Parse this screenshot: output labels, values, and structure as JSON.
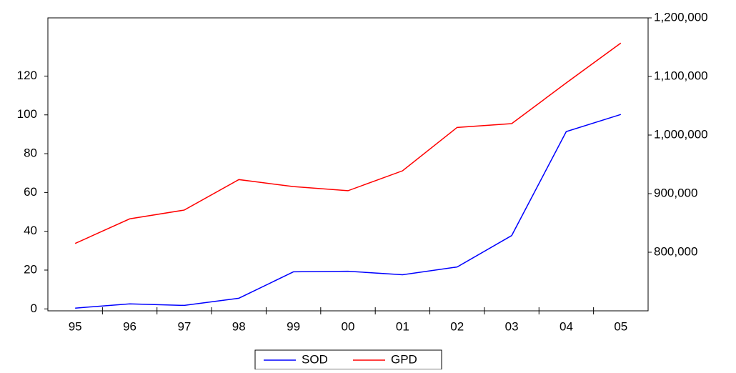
{
  "chart_data": {
    "type": "line",
    "categories": [
      "95",
      "96",
      "97",
      "98",
      "99",
      "00",
      "01",
      "02",
      "03",
      "04",
      "05"
    ],
    "series": [
      {
        "name": "SOD",
        "color": "#0000ff",
        "values": [
          0.4,
          2.6,
          1.8,
          5.5,
          19.1,
          19.4,
          17.6,
          21.6,
          37.8,
          91.4,
          100.2
        ]
      },
      {
        "name": "GPD",
        "color": "#ff0000",
        "axis": "y2",
        "values": [
          815000,
          857000,
          872000,
          924000,
          912000,
          905000,
          939000,
          1013000,
          1019500,
          1089000,
          1157000
        ]
      }
    ],
    "ylim": [
      -1,
      150
    ],
    "yticks": [
      0,
      20,
      40,
      60,
      80,
      100,
      120
    ],
    "y2lim": [
      700000,
      1200000
    ],
    "y2ticks": [
      {
        "value": 800000,
        "label": "800,000"
      },
      {
        "value": 900000,
        "label": "900,000"
      },
      {
        "value": 1000000,
        "label": "1,000,000"
      },
      {
        "value": 1100000,
        "label": "1,100,000"
      },
      {
        "value": 1200000,
        "label": "1,200,000"
      }
    ],
    "legend": "bottom"
  }
}
